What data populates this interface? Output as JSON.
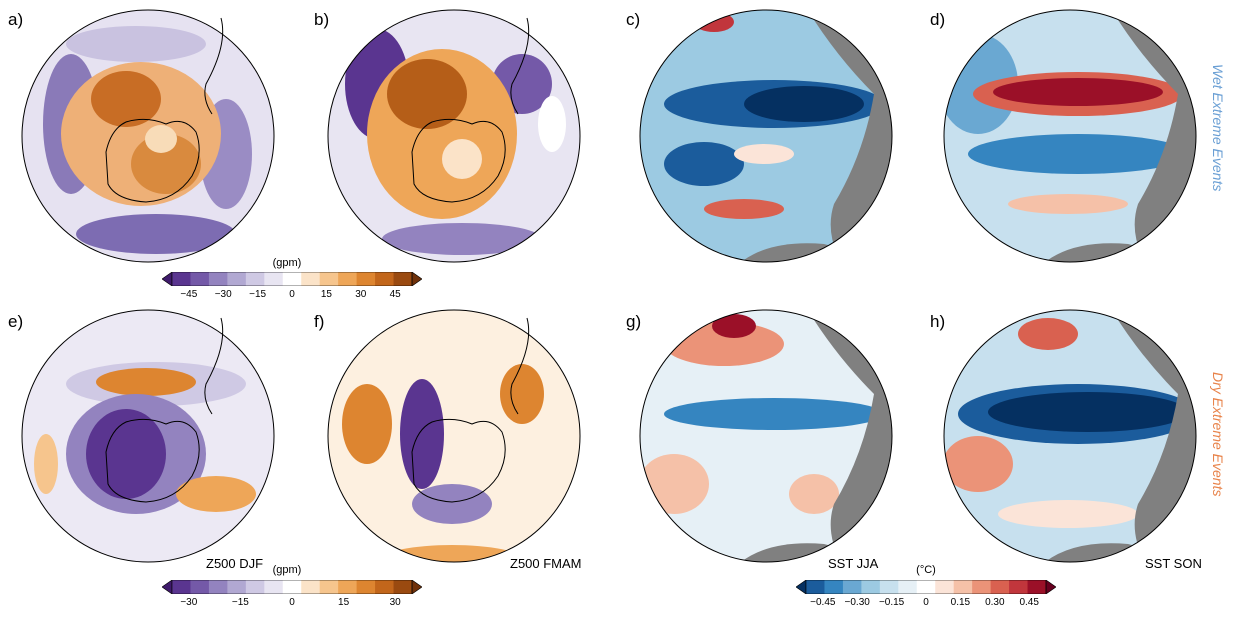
{
  "panels": [
    {
      "label": "a)",
      "type": "z500"
    },
    {
      "label": "b)",
      "type": "z500"
    },
    {
      "label": "c)",
      "type": "sst"
    },
    {
      "label": "d)",
      "type": "sst"
    },
    {
      "label": "e)",
      "type": "z500",
      "caption": "Z500 DJF"
    },
    {
      "label": "f)",
      "type": "z500",
      "caption": "Z500 FMAM"
    },
    {
      "label": "g)",
      "type": "sst",
      "caption": "SST JJA"
    },
    {
      "label": "h)",
      "type": "sst",
      "caption": "SST SON"
    }
  ],
  "side_titles": {
    "wet": "Wet Extreme Events",
    "dry": "Dry Extreme Events",
    "wet_color": "#6a9fd4",
    "dry_color": "#e8834a"
  },
  "colorbars": [
    {
      "units": "(gpm)",
      "ticks": [
        "−45",
        "−30",
        "−15",
        "0",
        "15",
        "30",
        "45"
      ],
      "palette": "purple-orange"
    },
    {
      "units": "(gpm)",
      "ticks": [
        "−30",
        "−15",
        "0",
        "15",
        "30"
      ],
      "palette": "purple-orange"
    },
    {
      "units": "(°C)",
      "ticks": [
        "−0.45",
        "−0.30",
        "−0.15",
        "0",
        "0.15",
        "0.30",
        "0.45"
      ],
      "palette": "blue-red"
    }
  ],
  "palettes": {
    "purple-orange": [
      "#3f1a6b",
      "#5a3590",
      "#7459a8",
      "#9383bf",
      "#b1a8d2",
      "#cfc9e4",
      "#e8e5f2",
      "#ffffff",
      "#fbe3c8",
      "#f6c58d",
      "#eea658",
      "#dd8530",
      "#c2661b",
      "#9a4a10",
      "#6f310a"
    ],
    "blue-red": [
      "#053061",
      "#1b5c9c",
      "#3585c0",
      "#6aa8d2",
      "#9ccae2",
      "#c7e0ee",
      "#e6f0f6",
      "#ffffff",
      "#fbe4d8",
      "#f5c1a8",
      "#eb9378",
      "#d96150",
      "#c1363c",
      "#9b1028",
      "#67001f"
    ]
  }
}
